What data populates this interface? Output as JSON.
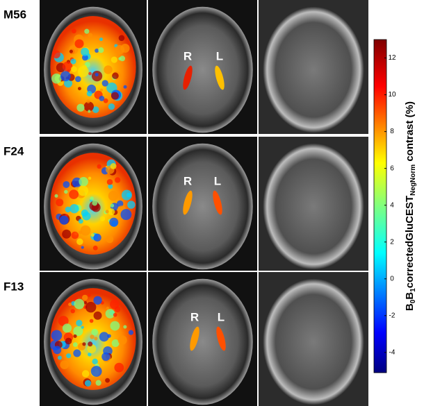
{
  "rows": [
    {
      "label": "M56",
      "left_label": "R",
      "right_label": "L"
    },
    {
      "label": "F24",
      "left_label": "R",
      "right_label": "L"
    },
    {
      "label": "F13",
      "left_label": "R",
      "right_label": "L"
    }
  ],
  "colorbar": {
    "lim": [
      -5.1,
      13
    ],
    "ticks": [
      -4,
      -2,
      0,
      2,
      4,
      6,
      8,
      10,
      12
    ],
    "label_parts": [
      {
        "text": "B",
        "sub": false
      },
      {
        "text": "0",
        "sub": true
      },
      {
        "text": "B",
        "sub": false
      },
      {
        "text": "1",
        "sub": true
      },
      {
        "text": "correctedGluCEST",
        "sub": false
      },
      {
        "text": "NegNorm",
        "sub": true
      },
      {
        "text": " contrast (%)",
        "sub": false
      }
    ]
  }
}
